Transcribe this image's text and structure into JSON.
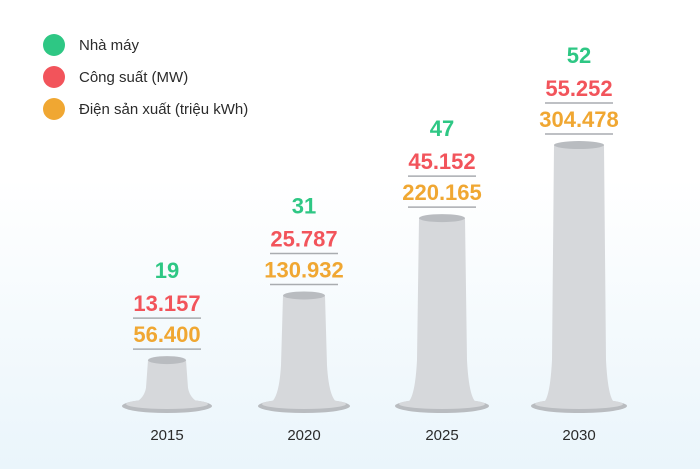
{
  "chart_data": {
    "type": "bar",
    "categories": [
      "2015",
      "2020",
      "2025",
      "2030"
    ],
    "series": [
      {
        "name": "Nhà máy",
        "color": "#2ec784",
        "values": [
          19,
          31,
          47,
          52
        ],
        "labels": [
          "19",
          "31",
          "47",
          "52"
        ]
      },
      {
        "name": "Công suất (MW)",
        "color": "#f2545b",
        "values": [
          13157,
          25787,
          45152,
          55252
        ],
        "labels": [
          "13.157",
          "25.787",
          "45.152",
          "55.252"
        ]
      },
      {
        "name": "Điện sản xuất (triệu kWh)",
        "color": "#f0a732",
        "values": [
          56400,
          130932,
          220165,
          304478
        ],
        "labels": [
          "56.400",
          "130.932",
          "220.165",
          "304.478"
        ]
      }
    ],
    "bar_series_index": 2,
    "ylim": [
      0,
      320000
    ],
    "title": "",
    "xlabel": "",
    "ylabel": "",
    "legend": "top-left"
  },
  "colors": {
    "chimney": "#d6d8db",
    "chimney_shadow": "#b9bcc0",
    "divider": "#a9acb0"
  }
}
